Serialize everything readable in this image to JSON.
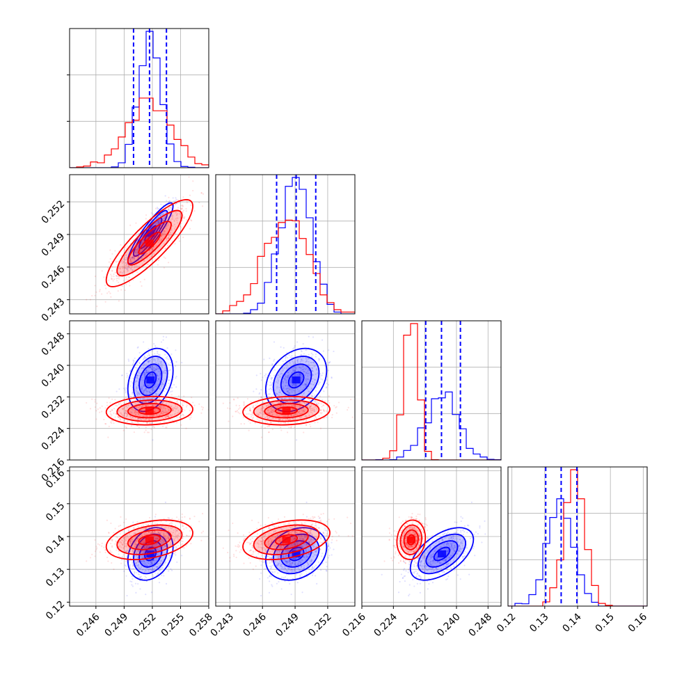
{
  "chart_data": {
    "type": "corner",
    "title": "",
    "series": [
      {
        "color": "#0000ff"
      },
      {
        "color": "#ff0000"
      }
    ],
    "variables": [
      {
        "range": [
          0.2432,
          0.258
        ],
        "ticks": [
          "0.246",
          "0.249",
          "0.252",
          "0.255",
          "0.258"
        ]
      },
      {
        "range": [
          0.2417,
          0.2545
        ],
        "ticks": [
          "0.243",
          "0.246",
          "0.249",
          "0.252"
        ]
      },
      {
        "range": [
          0.216,
          0.2513
        ],
        "ticks": [
          "0.216",
          "0.224",
          "0.232",
          "0.240",
          "0.248"
        ]
      },
      {
        "range": [
          0.1188,
          0.1612
        ],
        "ticks": [
          "0.12",
          "0.13",
          "0.14",
          "0.15",
          "0.16"
        ]
      }
    ],
    "quantile_lines": [
      [
        0.25,
        0.2517,
        0.2535
      ],
      [
        0.2473,
        0.2491,
        0.2509
      ],
      [
        0.2322,
        0.2362,
        0.241
      ],
      [
        0.1303,
        0.135,
        0.1398
      ]
    ],
    "distributions": [
      {
        "mean": [
          0.2518,
          0.2491,
          0.2363,
          0.1347
        ],
        "std": [
          0.0012,
          0.0014,
          0.004,
          0.004
        ],
        "corr": [
          [
            0,
            1,
            0.9
          ],
          [
            0,
            2,
            0.3
          ],
          [
            1,
            2,
            0.3
          ],
          [
            0,
            3,
            0.25
          ],
          [
            1,
            3,
            0.25
          ],
          [
            2,
            3,
            0.55
          ]
        ]
      },
      {
        "mean": [
          0.2517,
          0.2482,
          0.2285,
          0.139
        ],
        "std": [
          0.0023,
          0.002,
          0.0018,
          0.003
        ],
        "corr": [
          [
            0,
            1,
            0.85
          ],
          [
            0,
            2,
            0.1
          ],
          [
            1,
            2,
            0.1
          ],
          [
            0,
            3,
            0.35
          ],
          [
            1,
            3,
            0.35
          ],
          [
            2,
            3,
            0.1
          ]
        ]
      }
    ],
    "contour_levels_sigma": [
      0.5,
      1.0,
      1.5,
      2.0
    ],
    "grid": true,
    "legend": "none"
  }
}
